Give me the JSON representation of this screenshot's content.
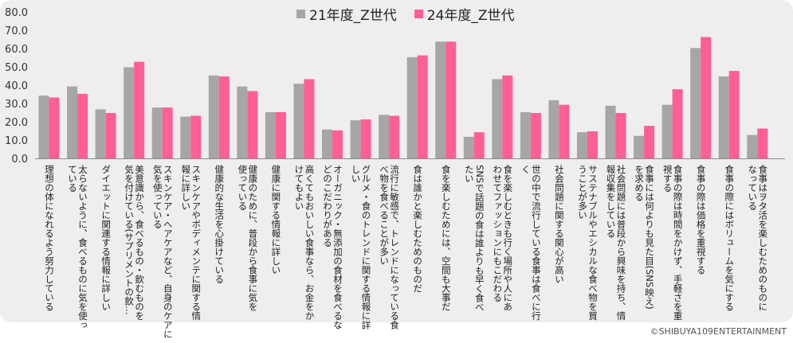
{
  "chart_data": {
    "type": "bar",
    "ylim": [
      0,
      80
    ],
    "yticks": [
      "0.0",
      "10.0",
      "20.0",
      "30.0",
      "40.0",
      "50.0",
      "60.0",
      "70.0",
      "80.0"
    ],
    "grid": false,
    "legend_position": "top-center",
    "categories": [
      "理想の体になれるよう努力している",
      "太らないように、食べるものに気を使っている",
      "ダイエットに関連する情報に詳しい",
      "美意識から、食べるもの・飲むものを気を付けている(サプリメントの飲…",
      "スキンケア・ヘアケアなど、自身のケアに気を使っている",
      "スキンケアやボディメンテに関する情報に詳しい",
      "健康的な生活を心掛けている",
      "健康のために、普段から食事に気を使っている",
      "健康に関する情報に詳しい",
      "高くてもおいしい食事なら、お金をかけてもよい",
      "オーガニック・無添加の食材を食べるなどのこだわりがある",
      "グルメ・食のトレンドに関する情報に詳しい",
      "流行に敏感で、トレンドになっている食べ物を食べることが多い",
      "食は誰かと楽しむためのものだ",
      "食を楽しむためには、空間も大事だ",
      "SNSで話題の食は誰よりも早く食べたい",
      "食を楽しむときも行く場所や人にあわせてファッションにもこだわる",
      "世の中で流行している食事は食べに行く",
      "社会問題に関する関心が高い",
      "サステナブルやエシカルな食べ物を買うことが多い",
      "社会問題には普段から興味を持ち、情報収集をしている",
      "食事には何よりも見た目(SNS映え)を求める",
      "食事の際は時間をかけず、手軽さを重視する",
      "食事の際は価格を重視する",
      "食事の際にはボリュームを気にする",
      "食事はヲタ活を楽しむためのものになっている"
    ],
    "series": [
      {
        "name": "21年度_Z世代",
        "color": "#a6a6a6",
        "values": [
          34.5,
          39.5,
          27.0,
          50.0,
          28.0,
          23.0,
          45.5,
          39.5,
          25.5,
          41.0,
          16.0,
          21.0,
          24.0,
          55.5,
          64.0,
          12.0,
          43.5,
          25.5,
          32.0,
          14.5,
          29.0,
          12.5,
          29.5,
          60.5,
          45.0,
          13.0
        ]
      },
      {
        "name": "24年度_Z世代",
        "color": "#ff5f95",
        "values": [
          33.5,
          35.5,
          25.0,
          53.0,
          28.0,
          23.5,
          45.0,
          37.0,
          25.5,
          43.5,
          15.5,
          21.5,
          23.5,
          56.5,
          64.0,
          14.5,
          45.5,
          25.0,
          29.5,
          15.0,
          25.0,
          18.0,
          38.0,
          66.5,
          48.0,
          16.5
        ]
      }
    ]
  },
  "category_label_lines": [
    [
      "理想の体になれるよう努力している"
    ],
    [
      "太らないように、食べるものに気を使っ",
      "ている"
    ],
    [
      "ダイエットに関連する情報に詳しい"
    ],
    [
      "美意識から、食べるもの・飲むものを",
      "気を付けている(サプリメントの飲…"
    ],
    [
      "スキンケア・ヘアケアなど、自身のケアに",
      "気を使っている"
    ],
    [
      "スキンケアやボディメンテに関する情",
      "報に詳しい"
    ],
    [
      "健康的な生活を心掛けている"
    ],
    [
      "健康のために、普段から食事に気を",
      "使っている"
    ],
    [
      "健康に関する情報に詳しい"
    ],
    [
      "高くてもおいしい食事なら、お金をか",
      "けてもよい"
    ],
    [
      "オーガニック・無添加の食材を食べるな",
      "どのこだわりがある"
    ],
    [
      "グルメ・食のトレンドに関する情報に詳",
      "しい"
    ],
    [
      "流行に敏感で、トレンドになっている食",
      "べ物を食べることが多い"
    ],
    [
      "食は誰かと楽しむためのものだ"
    ],
    [
      "食を楽しむためには、空間も大事だ"
    ],
    [
      "SNSで話題の食は誰よりも早く食べ",
      "たい"
    ],
    [
      "食を楽しむときも行く場所や人にあ",
      "わせてファッションにもこだわる"
    ],
    [
      "世の中で流行している食事は食べに行",
      "く"
    ],
    [
      "社会問題に関する関心が高い"
    ],
    [
      "サステナブルやエシカルな食べ物を買",
      "うことが多い"
    ],
    [
      "社会問題には普段から興味を持ち、情",
      "報収集をしている"
    ],
    [
      "食事には何よりも見た目(SNS映え)",
      "を求める"
    ],
    [
      "食事の際は時間をかけず、手軽さを重",
      "視する"
    ],
    [
      "食事の際は価格を重視する"
    ],
    [
      "食事の際にはボリュームを気にする"
    ],
    [
      "食事はヲタ活を楽しむためのものに",
      "なっている"
    ]
  ],
  "legend": {
    "series_1": "21年度_Z世代",
    "series_2": "24年度_Z世代"
  },
  "copyright": "©SHIBUYA109ENTERTAINMENT"
}
